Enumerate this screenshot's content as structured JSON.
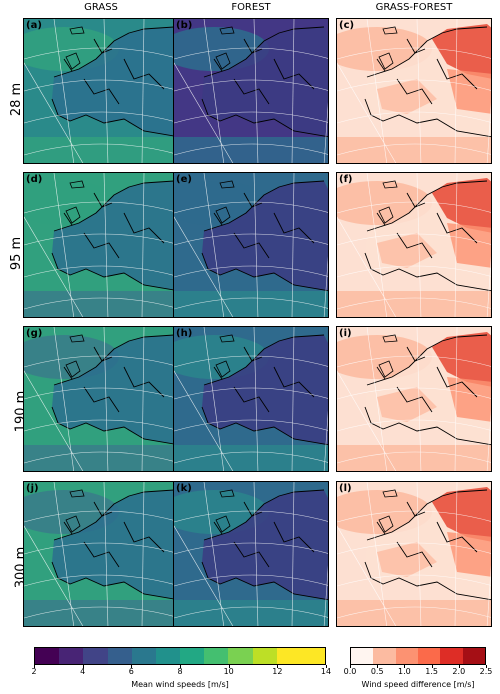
{
  "columns": [
    "GRASS",
    "FOREST",
    "GRASS-FOREST"
  ],
  "rows": [
    "28 m",
    "95 m",
    "190 m",
    "300 m"
  ],
  "panel_labels": [
    "(a)",
    "(b)",
    "(c)",
    "(d)",
    "(e)",
    "(f)",
    "(g)",
    "(h)",
    "(i)",
    "(j)",
    "(k)",
    "(l)"
  ],
  "colorbar_wind": {
    "title": "Mean wind speeds [m/s]",
    "ticks": [
      "2",
      "4",
      "6",
      "8",
      "10",
      "12",
      "14"
    ],
    "colors": [
      "#440154",
      "#482475",
      "#414487",
      "#355f8d",
      "#2a788e",
      "#21918c",
      "#22a884",
      "#44bf70",
      "#7ad151",
      "#bddf26",
      "#fde725",
      "#fde725"
    ]
  },
  "colorbar_diff": {
    "title": "Wind speed difference [m/s]",
    "ticks": [
      "0.0",
      "0.5",
      "1.0",
      "1.5",
      "2.0",
      "2.5"
    ],
    "colors": [
      "#fff5f0",
      "#fcbba1",
      "#fc9272",
      "#fb6a4a",
      "#de2d26",
      "#a50f15"
    ]
  },
  "panel_colors": {
    "grass": [
      "#2c6f8e",
      "#2a8a8a",
      "#31a07e",
      "#3a7d8a",
      "#5ec26a"
    ],
    "forest": [
      "#3b3b83",
      "#433785",
      "#2f6a8d",
      "#2b848c",
      "#33a17c"
    ],
    "diff": [
      "#fff5f0",
      "#fde0d2",
      "#fcbba1",
      "#fc9272",
      "#e8503c"
    ]
  }
}
